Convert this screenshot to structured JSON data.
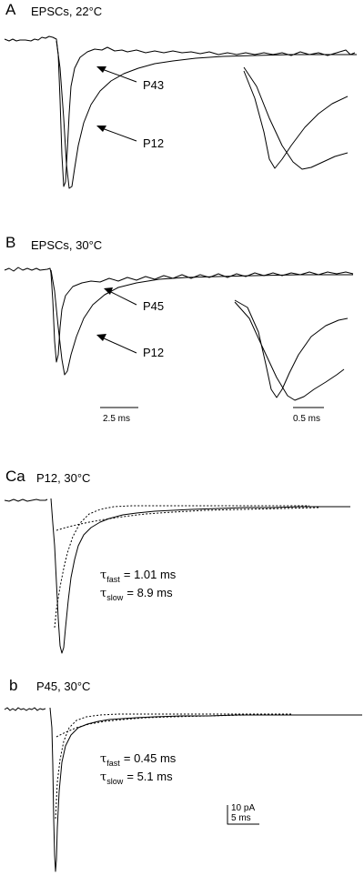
{
  "panelA": {
    "letter": "A",
    "title": "EPSCs, 22°C",
    "label_p43": "P43",
    "label_p12": "P12"
  },
  "panelB": {
    "letter": "B",
    "title": "EPSCs, 30°C",
    "label_p45": "P45",
    "label_p12": "P12",
    "scale_main": "2.5 ms",
    "scale_inset": "0.5 ms"
  },
  "panelCa": {
    "letter": "Ca",
    "title": "P12, 30°C",
    "tau_fast_sub": "fast",
    "tau_fast_val": "= 1.01 ms",
    "tau_slow_sub": "slow",
    "tau_slow_val": "= 8.9 ms"
  },
  "panelCb": {
    "letter": "b",
    "title": "P45, 30°C",
    "tau_fast_sub": "fast",
    "tau_fast_val": "= 0.45 ms",
    "tau_slow_sub": "slow",
    "tau_slow_val": "= 5.1 ms",
    "scale_current": "10 pA",
    "scale_time": "5 ms"
  },
  "tau_symbol": "τ"
}
